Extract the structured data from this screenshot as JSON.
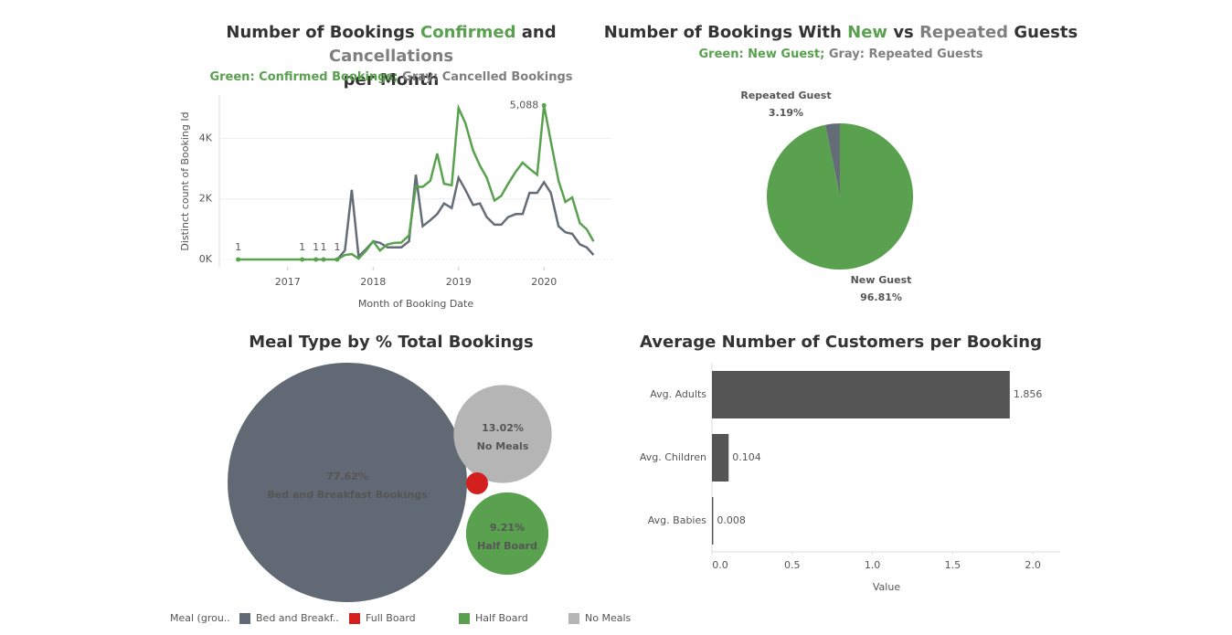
{
  "chart_data": [
    {
      "type": "line",
      "title": [
        "Number of Bookings",
        "Confirmed",
        "and",
        "Cancellations",
        "per Month"
      ],
      "subtitle": [
        "Green: Confirmed Bookings;",
        "Gray: Cancelled Bookings"
      ],
      "xlabel": "Month of Booking Date",
      "ylabel": "Distinct count of Booking Id",
      "x": [
        2016.42,
        2017.17,
        2017.33,
        2017.42,
        2017.58,
        2017.67,
        2017.75,
        2017.83,
        2017.92,
        2018,
        2018.08,
        2018.17,
        2018.25,
        2018.33,
        2018.42,
        2018.5,
        2018.58,
        2018.67,
        2018.75,
        2018.83,
        2018.92,
        2019,
        2019.08,
        2019.17,
        2019.25,
        2019.33,
        2019.42,
        2019.5,
        2019.58,
        2019.67,
        2019.75,
        2019.83,
        2019.92,
        2020,
        2020.08,
        2020.17,
        2020.25,
        2020.33,
        2020.42,
        2020.5,
        2020.58
      ],
      "series": [
        {
          "name": "Cancelled Bookings",
          "color": "#646d77",
          "values": [
            null,
            null,
            null,
            null,
            0,
            300,
            2300,
            100,
            350,
            600,
            550,
            400,
            400,
            400,
            600,
            2800,
            1100,
            1300,
            1500,
            1850,
            1700,
            2700,
            2300,
            1800,
            1850,
            1400,
            1150,
            1150,
            1400,
            1500,
            1500,
            2200,
            2200,
            2550,
            2200,
            1100,
            900,
            850,
            500,
            400,
            150
          ]
        },
        {
          "name": "Confirmed Bookings",
          "color": "#59a14f",
          "values": [
            1,
            1,
            1,
            1,
            1,
            150,
            180,
            30,
            300,
            600,
            300,
            500,
            550,
            560,
            800,
            2400,
            2400,
            2600,
            3500,
            2500,
            2450,
            5000,
            4500,
            3600,
            3100,
            2700,
            1950,
            2100,
            2500,
            2900,
            3200,
            3000,
            2800,
            5088,
            3900,
            2600,
            1900,
            2050,
            1200,
            1000,
            600
          ],
          "value_labels": [
            "1",
            "1",
            "1",
            "1",
            "1",
            null,
            null,
            null,
            null,
            null,
            null,
            null,
            null,
            null,
            null,
            null,
            null,
            null,
            null,
            null,
            null,
            null,
            null,
            null,
            null,
            null,
            null,
            null,
            null,
            null,
            null,
            null,
            null,
            "5,088",
            null,
            null,
            null,
            null,
            null,
            null,
            null
          ]
        }
      ],
      "xlim": [
        2016.2,
        2020.8
      ],
      "xticks": [
        2017,
        2018,
        2019,
        2020
      ],
      "ylim": [
        -240,
        5400
      ],
      "yticks": [
        {
          "value": 0,
          "label": "0K"
        },
        {
          "value": 2000,
          "label": "2K"
        },
        {
          "value": 4000,
          "label": "4K"
        }
      ],
      "grid": true
    },
    {
      "type": "pie",
      "title": [
        "Number of Bookings With",
        "New",
        "vs",
        "Repeated",
        "Guests"
      ],
      "subtitle": [
        "Green: New Guest;",
        "Gray: Repeated Guests"
      ],
      "categories": [
        "New Guest",
        "Repeated Guest"
      ],
      "values": [
        96.81,
        3.19
      ],
      "value_labels": [
        "96.81%",
        "3.19%"
      ],
      "colors": [
        "#59a14f",
        "#646d77"
      ]
    },
    {
      "type": "bubble",
      "title": "Meal Type by % Total Bookings",
      "categories": [
        "Bed and Breakfast Bookings",
        "No Meals",
        "Half Board",
        null
      ],
      "values": [
        77.62,
        13.02,
        9.21,
        0.15
      ],
      "value_labels": [
        "77.62%",
        "13.02%",
        "9.21%",
        null
      ],
      "colors": [
        "#616a74",
        "#b5b5b5",
        "#59a14f",
        "#d41f1f"
      ],
      "legend": {
        "title": "Meal (grou..",
        "items": [
          {
            "label": "Bed and Breakf..",
            "color": "#616a74"
          },
          {
            "label": "Full Board",
            "color": "#d41f1f"
          },
          {
            "label": "Half Board",
            "color": "#59a14f"
          },
          {
            "label": "No Meals",
            "color": "#b5b5b5"
          }
        ]
      }
    },
    {
      "type": "hbar",
      "title": "Average Number of Customers per Booking",
      "categories": [
        "Avg. Adults",
        "Avg. Children",
        "Avg. Babies"
      ],
      "values": [
        1.856,
        0.104,
        0.008
      ],
      "color": "#555555",
      "xlabel": "Value",
      "xlim": [
        0,
        2.17
      ],
      "xticks": [
        {
          "value": 0,
          "label": "0.0"
        },
        0.5,
        {
          "value": 1,
          "label": "1.0"
        },
        1.5,
        {
          "value": 2,
          "label": "2.0"
        }
      ]
    }
  ]
}
